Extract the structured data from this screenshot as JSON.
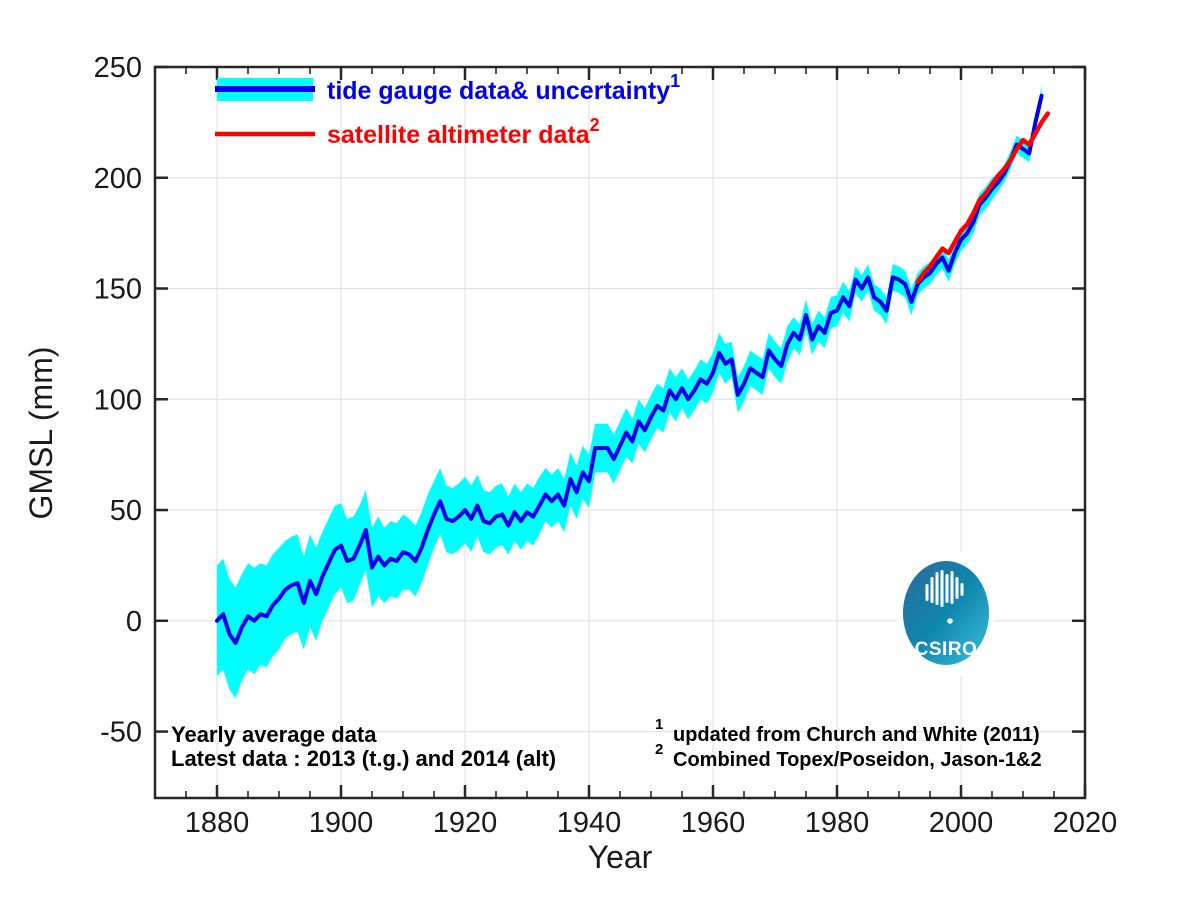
{
  "chart_data": {
    "type": "line",
    "title": "",
    "xlabel": "Year",
    "ylabel": "GMSL (mm)",
    "xlim": [
      1870,
      2020
    ],
    "ylim": [
      -80,
      250
    ],
    "x_ticks": [
      1880,
      1900,
      1920,
      1940,
      1960,
      1980,
      2000,
      2020
    ],
    "x_minor_step": 5,
    "y_ticks": [
      -50,
      0,
      50,
      100,
      150,
      200,
      250
    ],
    "grid": true,
    "legend_position": "top-left",
    "series": [
      {
        "name": "tide gauge data& uncertainty",
        "sup": "1",
        "color": "#0000ee",
        "band_color": "#00ffff",
        "x_start": 1880,
        "x_end": 2013,
        "x_step": 1,
        "values": [
          0,
          3,
          -6,
          -10,
          -3,
          2,
          0,
          3,
          2,
          7,
          10,
          14,
          16,
          17,
          8,
          18,
          12,
          20,
          26,
          32,
          34,
          27,
          28,
          34,
          41,
          24,
          29,
          25,
          28,
          27,
          31,
          30,
          27,
          33,
          41,
          48,
          54,
          46,
          45,
          47,
          50,
          46,
          52,
          45,
          44,
          47,
          48,
          43,
          49,
          45,
          49,
          47,
          52,
          57,
          54,
          57,
          52,
          64,
          58,
          67,
          63,
          78,
          78,
          78,
          73,
          79,
          85,
          81,
          90,
          86,
          92,
          97,
          95,
          104,
          100,
          105,
          100,
          104,
          109,
          107,
          112,
          121,
          116,
          118,
          102,
          107,
          114,
          112,
          110,
          122,
          118,
          115,
          125,
          130,
          127,
          138,
          127,
          133,
          130,
          139,
          140,
          146,
          142,
          154,
          150,
          155,
          146,
          144,
          140,
          155,
          154,
          152,
          144,
          152,
          155,
          157,
          161,
          164,
          158,
          166,
          172,
          175,
          180,
          188,
          191,
          195,
          198,
          202,
          208,
          215,
          213,
          211,
          225,
          237
        ],
        "uncertainty": [
          25,
          25,
          25,
          25,
          24,
          24,
          24,
          23,
          23,
          23,
          23,
          22,
          22,
          22,
          21,
          21,
          21,
          20,
          20,
          20,
          19,
          19,
          19,
          18,
          18,
          18,
          18,
          17,
          17,
          17,
          17,
          16,
          16,
          16,
          16,
          15,
          15,
          15,
          15,
          15,
          15,
          15,
          14,
          14,
          14,
          14,
          14,
          13,
          13,
          13,
          13,
          13,
          13,
          12,
          12,
          12,
          12,
          12,
          12,
          12,
          12,
          11,
          11,
          11,
          11,
          11,
          11,
          10,
          10,
          10,
          10,
          10,
          10,
          10,
          10,
          9,
          9,
          9,
          9,
          9,
          9,
          9,
          9,
          8,
          8,
          8,
          8,
          8,
          8,
          8,
          8,
          8,
          8,
          7,
          7,
          7,
          7,
          7,
          7,
          7,
          7,
          7,
          7,
          6,
          6,
          6,
          6,
          6,
          6,
          6,
          6,
          6,
          6,
          5,
          5,
          5,
          5,
          5,
          5,
          5,
          5,
          5,
          5,
          5,
          5,
          5,
          4,
          4,
          4,
          4,
          4,
          4,
          4,
          4
        ]
      },
      {
        "name": "satellite altimeter data",
        "sup": "2",
        "color": "#ff0000",
        "x_start": 1993,
        "x_end": 2014,
        "x_step": 1,
        "values": [
          153,
          157,
          160,
          164,
          168,
          166,
          171,
          176,
          179,
          184,
          190,
          193,
          197,
          201,
          204,
          208,
          213,
          217,
          215,
          220,
          225,
          229
        ]
      }
    ]
  },
  "legend": {
    "tide_label": "tide gauge data& uncertainty",
    "tide_sup": "1",
    "satellite_label": "satellite altimeter data",
    "satellite_sup": "2"
  },
  "annotations": {
    "line1": "Yearly average data",
    "line2": "Latest data : 2013 (t.g.) and 2014 (alt)"
  },
  "footnotes": {
    "sup1": "1",
    "note1": "updated from Church and White (2011)",
    "sup2": "2",
    "note2": "Combined Topex/Poseidon, Jason-1&2"
  },
  "logo": {
    "text": "CSIRO",
    "colors": [
      "#2f6a9b",
      "#0e86ad",
      "#3fc0dd"
    ]
  },
  "colors": {
    "tide_line": "#0000ee",
    "uncertainty_band": "#00ffff",
    "satellite_line": "#ff0000",
    "grid": "#e2e2e2",
    "axis": "#262626"
  }
}
